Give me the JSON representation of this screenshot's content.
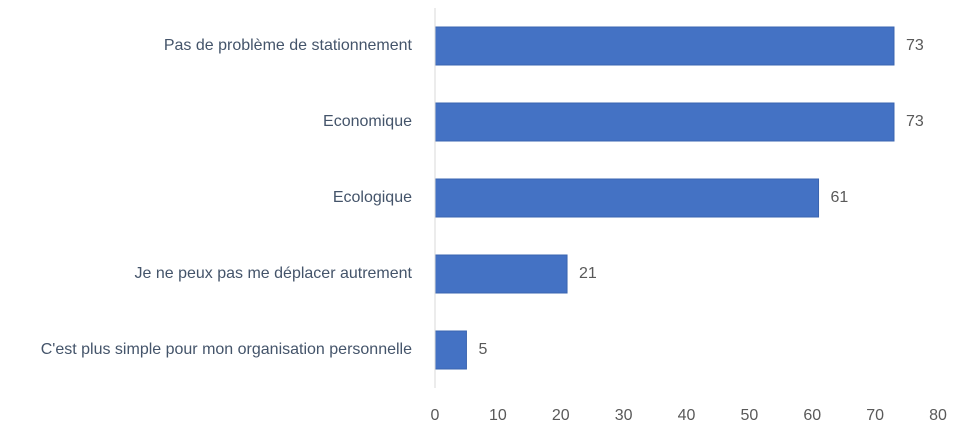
{
  "chart_data": {
    "type": "bar",
    "orientation": "horizontal",
    "categories": [
      "Pas de problème de stationnement",
      "Economique",
      "Ecologique",
      "Je ne peux pas me déplacer autrement",
      "C'est plus simple pour mon organisation personnelle"
    ],
    "values": [
      73,
      73,
      61,
      21,
      5
    ],
    "color": "#4472c4",
    "xlim": [
      0,
      80
    ],
    "xticks": [
      0,
      10,
      20,
      30,
      40,
      50,
      60,
      70,
      80
    ],
    "grid": false
  }
}
